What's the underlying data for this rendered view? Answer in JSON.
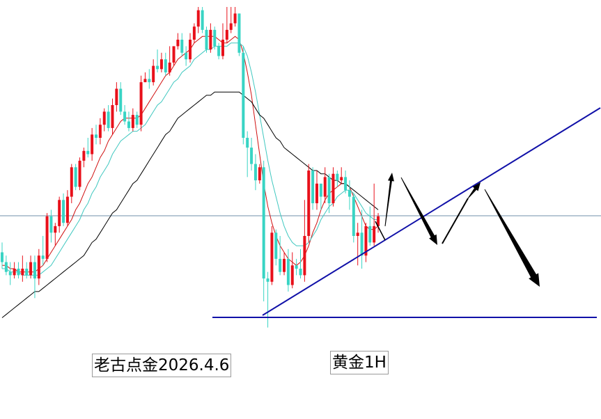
{
  "labels": {
    "author_date": "老古点金2026.4.6",
    "symbol_timeframe": "黄金1H"
  },
  "chart_data": {
    "type": "candlestick",
    "title": "",
    "xlabel": "",
    "ylabel": "",
    "ylim": [
      0,
      100
    ],
    "grid": false,
    "colors": {
      "up_candle": "#e8101a",
      "down_candle": "#38d4c4",
      "ma_short": "#d01010",
      "ma_mid": "#40c8c0",
      "ma_long": "#000000",
      "trendlines": "#1010a8",
      "horizontal_reference": "#6f8fa8",
      "arrows": "#000000"
    },
    "candles": [
      [
        25,
        22,
        28,
        20
      ],
      [
        22,
        19,
        24,
        18
      ],
      [
        19,
        18,
        22,
        15
      ],
      [
        18,
        20,
        22,
        17
      ],
      [
        20,
        18,
        22,
        17
      ],
      [
        18,
        20,
        24,
        16
      ],
      [
        20,
        18,
        22,
        17
      ],
      [
        18,
        22,
        24,
        17
      ],
      [
        22,
        17,
        24,
        11
      ],
      [
        17,
        24,
        26,
        15
      ],
      [
        24,
        23,
        30,
        21
      ],
      [
        23,
        36,
        37,
        22
      ],
      [
        36,
        31,
        38,
        28
      ],
      [
        31,
        33,
        34,
        27
      ],
      [
        33,
        41,
        42,
        31
      ],
      [
        41,
        34,
        43,
        33
      ],
      [
        34,
        42,
        44,
        33
      ],
      [
        42,
        51,
        52,
        40
      ],
      [
        51,
        45,
        52,
        44
      ],
      [
        45,
        53,
        54,
        44
      ],
      [
        53,
        56,
        57,
        51
      ],
      [
        56,
        55,
        60,
        54
      ],
      [
        55,
        61,
        63,
        53
      ],
      [
        61,
        60,
        64,
        58
      ],
      [
        60,
        64,
        66,
        58
      ],
      [
        64,
        68,
        69,
        62
      ],
      [
        68,
        63,
        70,
        62
      ],
      [
        63,
        70,
        72,
        61
      ],
      [
        70,
        75,
        77,
        68
      ],
      [
        75,
        68,
        77,
        67
      ],
      [
        68,
        65,
        70,
        64
      ],
      [
        65,
        63,
        68,
        62
      ],
      [
        63,
        67,
        69,
        62
      ],
      [
        67,
        64,
        68,
        63
      ],
      [
        64,
        77,
        79,
        62
      ],
      [
        77,
        78,
        80,
        77
      ],
      [
        78,
        77,
        81,
        75
      ],
      [
        77,
        82,
        84,
        76
      ],
      [
        82,
        81,
        87,
        80
      ],
      [
        81,
        84,
        86,
        80
      ],
      [
        84,
        80,
        86,
        79
      ],
      [
        80,
        83,
        88,
        79
      ],
      [
        83,
        88,
        88,
        82
      ],
      [
        88,
        90,
        92,
        87
      ],
      [
        90,
        86,
        92,
        85
      ],
      [
        86,
        84,
        88,
        82
      ],
      [
        84,
        90,
        92,
        83
      ],
      [
        90,
        94,
        95,
        89
      ],
      [
        94,
        99,
        100,
        92
      ],
      [
        99,
        93,
        100,
        92
      ],
      [
        93,
        87,
        94,
        86
      ],
      [
        87,
        93,
        95,
        86
      ],
      [
        93,
        88,
        94,
        87
      ],
      [
        88,
        85,
        89,
        84
      ],
      [
        85,
        90,
        95,
        84
      ],
      [
        90,
        93,
        100,
        89
      ],
      [
        93,
        95,
        100,
        92
      ],
      [
        95,
        98,
        100,
        94
      ],
      [
        98,
        86,
        98,
        85
      ],
      [
        86,
        60,
        88,
        58
      ],
      [
        60,
        57,
        62,
        48
      ],
      [
        57,
        52,
        60,
        50
      ],
      [
        52,
        47,
        55,
        44
      ],
      [
        47,
        51,
        52,
        46
      ],
      [
        51,
        17,
        53,
        10
      ],
      [
        17,
        16,
        19,
        2
      ],
      [
        16,
        31,
        33,
        15
      ],
      [
        31,
        23,
        32,
        21
      ],
      [
        23,
        19,
        30,
        18
      ],
      [
        19,
        23,
        25,
        18
      ],
      [
        23,
        15,
        26,
        13
      ],
      [
        15,
        21,
        25,
        14
      ],
      [
        21,
        20,
        23,
        18
      ],
      [
        20,
        18,
        26,
        17
      ],
      [
        18,
        30,
        41,
        16
      ],
      [
        30,
        50,
        52,
        28
      ],
      [
        50,
        40,
        51,
        38
      ],
      [
        40,
        46,
        50,
        38
      ],
      [
        46,
        42,
        45,
        38
      ],
      [
        42,
        48,
        51,
        40
      ],
      [
        48,
        40,
        49,
        37
      ],
      [
        40,
        49,
        51,
        39
      ],
      [
        49,
        47,
        50,
        45
      ],
      [
        47,
        48,
        51,
        46
      ],
      [
        48,
        44,
        50,
        43
      ],
      [
        44,
        42,
        47,
        38
      ],
      [
        42,
        30,
        43,
        28
      ],
      [
        30,
        31,
        34,
        21
      ],
      [
        31,
        24,
        38,
        20
      ],
      [
        24,
        33,
        34,
        22
      ],
      [
        33,
        28,
        39,
        27
      ],
      [
        28,
        33,
        46,
        27
      ],
      [
        33,
        36,
        37,
        31
      ]
    ],
    "series": [
      {
        "values": [
          21,
          21,
          20,
          20,
          19,
          19,
          19,
          19,
          19,
          20,
          21,
          23,
          25,
          27,
          29,
          31,
          33,
          35,
          38,
          40,
          43,
          46,
          48,
          51,
          54,
          56,
          59,
          61,
          63,
          65,
          66,
          66,
          66,
          66,
          67,
          69,
          71,
          73,
          75,
          77,
          79,
          80,
          82,
          84,
          85,
          86,
          87,
          89,
          90,
          91,
          91,
          91,
          91,
          90,
          89,
          89,
          90,
          91,
          90,
          86,
          80,
          73,
          64,
          55,
          46,
          39,
          34,
          30,
          27,
          25,
          23,
          22,
          21,
          22,
          24,
          27,
          31,
          34,
          38,
          41,
          43,
          44,
          45,
          46,
          46,
          45,
          42,
          39,
          36,
          33,
          32,
          32,
          33
        ]
      },
      {
        "values": [
          20,
          20,
          19,
          19,
          19,
          18,
          18,
          18,
          18,
          18,
          19,
          20,
          21,
          23,
          25,
          27,
          29,
          31,
          33,
          35,
          38,
          40,
          43,
          45,
          48,
          50,
          52,
          55,
          57,
          59,
          60,
          61,
          62,
          62,
          63,
          64,
          66,
          68,
          70,
          71,
          73,
          75,
          77,
          78,
          80,
          81,
          82,
          84,
          85,
          86,
          87,
          87,
          88,
          88,
          88,
          88,
          89,
          89,
          89,
          88,
          85,
          80,
          74,
          67,
          60,
          53,
          47,
          42,
          37,
          33,
          30,
          28,
          27,
          27,
          27,
          28,
          30,
          32,
          35,
          37,
          39,
          40,
          42,
          43,
          44,
          44,
          43,
          41,
          39,
          37,
          36,
          35,
          35
        ]
      },
      {
        "values": [
          5,
          6,
          7,
          8,
          9,
          10,
          11,
          12,
          13,
          13,
          14,
          15,
          16,
          17,
          18,
          19,
          20,
          21,
          22,
          23,
          24,
          26,
          28,
          29,
          31,
          33,
          35,
          37,
          38,
          40,
          42,
          44,
          46,
          47,
          49,
          51,
          53,
          55,
          57,
          59,
          61,
          62,
          64,
          66,
          67,
          68,
          69,
          70,
          71,
          72,
          73,
          73,
          74,
          74,
          74,
          74,
          74,
          74,
          74,
          73,
          72,
          71,
          69,
          67,
          66,
          64,
          62,
          60,
          59,
          57,
          56,
          55,
          54,
          53,
          52,
          51,
          50,
          50,
          49,
          49,
          48,
          47,
          47,
          46,
          46,
          45,
          44,
          43,
          42,
          41,
          40,
          39,
          38
        ]
      }
    ]
  }
}
